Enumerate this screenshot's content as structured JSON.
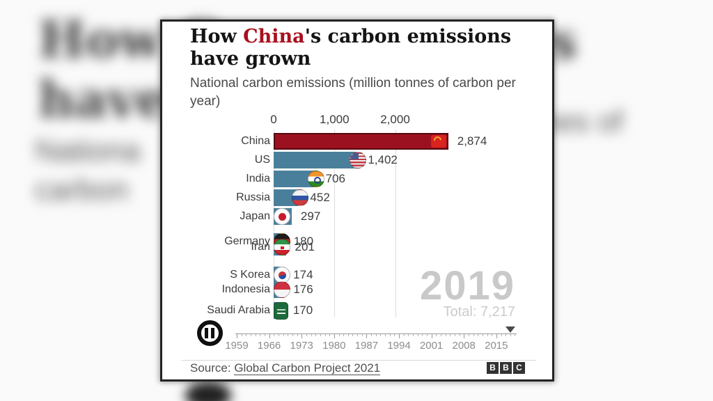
{
  "header": {
    "title_pre": "How ",
    "title_highlight": "China",
    "title_post": "'s carbon emissions have grown",
    "subtitle": "National carbon emissions (million tonnes of carbon per year)"
  },
  "chart_data": {
    "type": "bar",
    "orientation": "horizontal",
    "title": "How China's carbon emissions have grown",
    "subtitle": "National carbon emissions (million tonnes of carbon per year)",
    "xlabel": "",
    "ylabel": "",
    "xlim": [
      0,
      3200
    ],
    "axis_ticks": [
      "0",
      "1,000",
      "2,000"
    ],
    "axis_tick_values": [
      0,
      1000,
      2000
    ],
    "grid": true,
    "rows": [
      {
        "country": "China",
        "value": 2874,
        "display": "2,874",
        "flag": "china",
        "color": "#9c1120"
      },
      {
        "country": "US",
        "value": 1402,
        "display": "1,402",
        "flag": "us",
        "color": "#4a7f9b"
      },
      {
        "country": "India",
        "value": 706,
        "display": "706",
        "flag": "india",
        "color": "#4a7f9b"
      },
      {
        "country": "Russia",
        "value": 452,
        "display": "452",
        "flag": "russia",
        "color": "#4a7f9b"
      },
      {
        "country": "Japan",
        "value": 297,
        "display": "297",
        "flag": "japan",
        "color": "#4a7f9b"
      },
      {
        "country": "Germany",
        "value": 180,
        "display": "180",
        "flag": "germany",
        "color": "#4a7f9b"
      },
      {
        "country": "Iran",
        "value": 201,
        "display": "201",
        "flag": "iran",
        "color": "#4a7f9b"
      },
      {
        "country": "S Korea",
        "value": 174,
        "display": "174",
        "flag": "skorea",
        "color": "#4a7f9b"
      },
      {
        "country": "Indonesia",
        "value": 176,
        "display": "176",
        "flag": "indonesia",
        "color": "#4a7f9b"
      },
      {
        "country": "Saudi Arabia",
        "value": 170,
        "display": "170",
        "flag": "saudi",
        "color": "#4a7f9b"
      }
    ],
    "year": "2019",
    "total_label": "Total: 7,217",
    "timeline_years": [
      "1959",
      "1966",
      "1973",
      "1980",
      "1987",
      "1994",
      "2001",
      "2008",
      "2015"
    ]
  },
  "player": {
    "state": "playing",
    "icon": "pause"
  },
  "footer": {
    "source_prefix": "Source: ",
    "source_link": "Global Carbon Project 2021",
    "logo_letters": [
      "B",
      "B",
      "C"
    ]
  },
  "colors": {
    "china_bar": "#9c1120",
    "default_bar": "#4a7f9b",
    "title_highlight": "#a8101e",
    "year_watermark": "#c9c9c9"
  },
  "background": {
    "blur_fragments": [
      "How C",
      "have g",
      "Nationa",
      "carbon",
      "s",
      "nes of"
    ]
  }
}
